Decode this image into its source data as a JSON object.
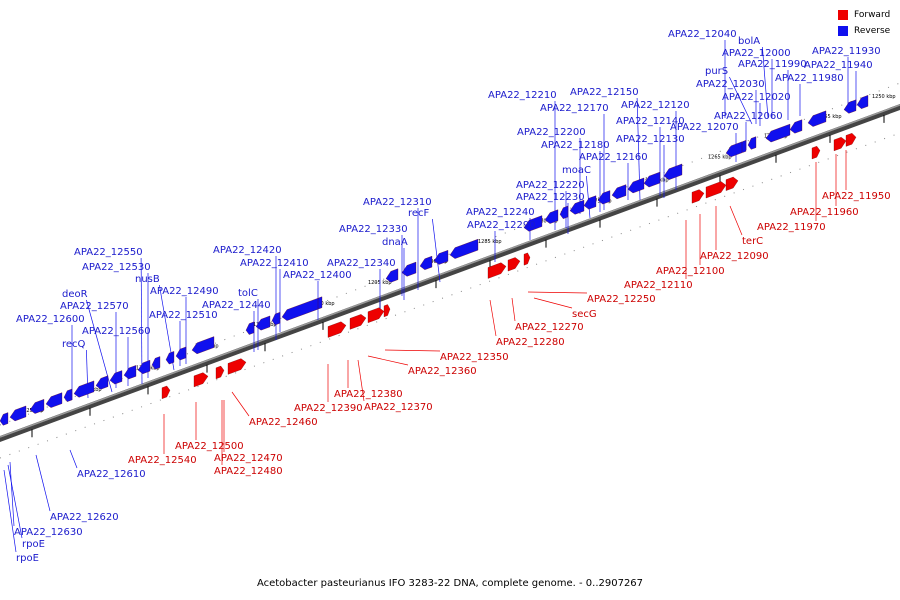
{
  "legend": {
    "forward": {
      "label": "Forward",
      "color": "#ee0000"
    },
    "reverse": {
      "label": "Reverse",
      "color": "#1010ee"
    }
  },
  "caption": "Acetobacter pasteurianus IFO 3283-22 DNA, complete genome. - 0..2907267",
  "kbp_marks": [
    "1250 kbp",
    "1255 kbp",
    "1260 kbp",
    "1265 kbp",
    "1270 kbp",
    "1275 kbp",
    "1280 kbp",
    "1285 kbp",
    "1290 kbp",
    "1295 kbp",
    "1300 kbp",
    "1305 kbp",
    "1310 kbp",
    "1315 kbp",
    "1320 kbp",
    "1325 kbp"
  ],
  "reverse_labels": [
    "APA22_12040",
    "bolA",
    "APA22_12000",
    "purS",
    "APA22_11990",
    "APA22_11930",
    "APA22_11940",
    "APA22_12030",
    "APA22_11980",
    "APA22_12020",
    "APA22_12210",
    "APA22_12150",
    "APA22_12170",
    "APA22_12120",
    "APA22_12140",
    "APA22_12200",
    "APA22_12060",
    "APA22_12070",
    "APA22_12180",
    "APA22_12130",
    "APA22_12160",
    "moaC",
    "APA22_12220",
    "APA22_12230",
    "APA22_12240",
    "APA22_12290",
    "APA22_12310",
    "recF",
    "APA22_12330",
    "dnaA",
    "APA22_12340",
    "APA22_12420",
    "APA22_12410",
    "APA22_12400",
    "tolC",
    "APA22_12440",
    "APA22_12550",
    "APA22_12530",
    "nusB",
    "APA22_12490",
    "deoR",
    "APA22_12570",
    "APA22_12510",
    "APA22_12600",
    "APA22_12560",
    "recQ",
    "APA22_12610",
    "APA22_12620",
    "APA22_12630",
    "rpoE",
    "rpoE"
  ],
  "forward_labels": [
    "APA22_11950",
    "APA22_11960",
    "APA22_11970",
    "terC",
    "APA22_12090",
    "APA22_12100",
    "APA22_12110",
    "APA22_12250",
    "secG",
    "APA22_12270",
    "APA22_12280",
    "APA22_12350",
    "APA22_12360",
    "APA22_12380",
    "APA22_12370",
    "APA22_12390",
    "APA22_12460",
    "APA22_12500",
    "APA22_12540",
    "APA22_12470",
    "APA22_12480"
  ]
}
